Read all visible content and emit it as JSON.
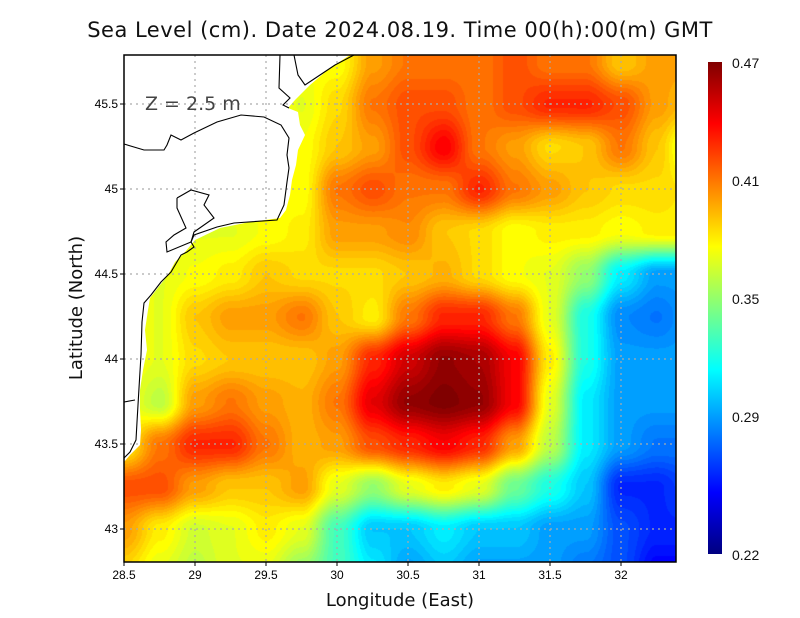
{
  "chart_data": {
    "type": "heatmap",
    "title": "Sea Level (cm). Date 2024.08.19. Time 00(h):00(m) GMT",
    "annotation": "Z = 2.5 m",
    "xlabel": "Longitude (East)",
    "ylabel": "Latitude (North)",
    "xlim": [
      28.5,
      32.39
    ],
    "ylim": [
      42.81,
      45.79
    ],
    "xticks": [
      "28.5",
      "29",
      "29.5",
      "30",
      "30.5",
      "31",
      "31.5",
      "32"
    ],
    "yticks": [
      "45.5",
      "45",
      "44.5",
      "44",
      "43.5",
      "43"
    ],
    "grid": true,
    "colormap": "jet",
    "colorbar": {
      "range": [
        0.22,
        0.47
      ],
      "ticks": [
        "0.47",
        "0.41",
        "0.35",
        "0.29",
        "0.22"
      ],
      "placement": "right"
    },
    "land_color": "#ffffff",
    "grid_lon": [
      28.5,
      28.75,
      29,
      29.25,
      29.5,
      29.75,
      30,
      30.25,
      30.5,
      30.75,
      31,
      31.25,
      31.5,
      31.75,
      32,
      32.25,
      32.5
    ],
    "grid_lat": [
      45.75,
      45.5,
      45.25,
      45,
      44.75,
      44.5,
      44.25,
      44,
      43.75,
      43.5,
      43.25,
      43,
      42.75
    ],
    "values": [
      [
        null,
        null,
        null,
        null,
        null,
        null,
        null,
        0.4,
        0.41,
        0.41,
        0.41,
        0.42,
        0.41,
        0.41,
        0.39,
        0.4,
        0.4
      ],
      [
        null,
        null,
        null,
        null,
        null,
        0.37,
        0.385,
        0.41,
        0.42,
        0.42,
        0.41,
        0.42,
        0.43,
        0.43,
        0.42,
        0.4,
        0.39
      ],
      [
        null,
        null,
        null,
        null,
        null,
        0.375,
        0.39,
        0.4,
        0.42,
        0.44,
        0.41,
        0.4,
        0.385,
        0.39,
        0.41,
        0.39,
        0.36
      ],
      [
        null,
        null,
        null,
        null,
        null,
        0.375,
        0.41,
        0.42,
        0.41,
        0.41,
        0.43,
        0.41,
        0.4,
        0.39,
        0.385,
        0.385,
        0.38
      ],
      [
        null,
        null,
        0.37,
        0.37,
        0.375,
        0.38,
        0.4,
        0.4,
        0.405,
        0.39,
        0.385,
        0.375,
        0.38,
        0.38,
        0.375,
        0.38,
        0.38
      ],
      [
        null,
        0.37,
        0.375,
        0.38,
        0.39,
        0.385,
        0.385,
        0.385,
        0.39,
        0.395,
        0.385,
        0.375,
        0.37,
        0.35,
        0.31,
        0.29,
        0.29
      ],
      [
        null,
        0.37,
        0.39,
        0.4,
        0.4,
        0.41,
        0.39,
        0.38,
        0.41,
        0.43,
        0.43,
        0.41,
        0.37,
        0.32,
        0.285,
        0.28,
        0.29
      ],
      [
        null,
        0.37,
        0.385,
        0.39,
        0.39,
        0.39,
        0.4,
        0.43,
        0.45,
        0.465,
        0.46,
        0.44,
        0.38,
        0.32,
        0.29,
        0.29,
        0.29
      ],
      [
        null,
        0.36,
        0.4,
        0.41,
        0.4,
        0.395,
        0.41,
        0.445,
        0.465,
        0.47,
        0.465,
        0.44,
        0.37,
        0.31,
        0.29,
        0.29,
        0.29
      ],
      [
        0.38,
        0.41,
        0.43,
        0.43,
        0.41,
        0.395,
        0.4,
        0.42,
        0.43,
        0.44,
        0.43,
        0.4,
        0.36,
        0.31,
        0.29,
        0.28,
        0.28
      ],
      [
        0.42,
        0.42,
        0.4,
        0.39,
        0.39,
        0.4,
        0.37,
        0.35,
        0.37,
        0.38,
        0.37,
        0.34,
        0.32,
        0.3,
        0.26,
        0.26,
        0.27
      ],
      [
        0.4,
        0.38,
        0.365,
        0.37,
        0.38,
        0.37,
        0.33,
        0.3,
        0.3,
        0.31,
        0.3,
        0.3,
        0.29,
        0.29,
        0.27,
        0.26,
        0.26
      ],
      [
        0.385,
        0.37,
        0.36,
        0.37,
        0.37,
        0.35,
        0.33,
        0.31,
        0.29,
        0.3,
        0.29,
        0.29,
        0.29,
        0.28,
        0.27,
        0.25,
        0.25
      ]
    ]
  }
}
